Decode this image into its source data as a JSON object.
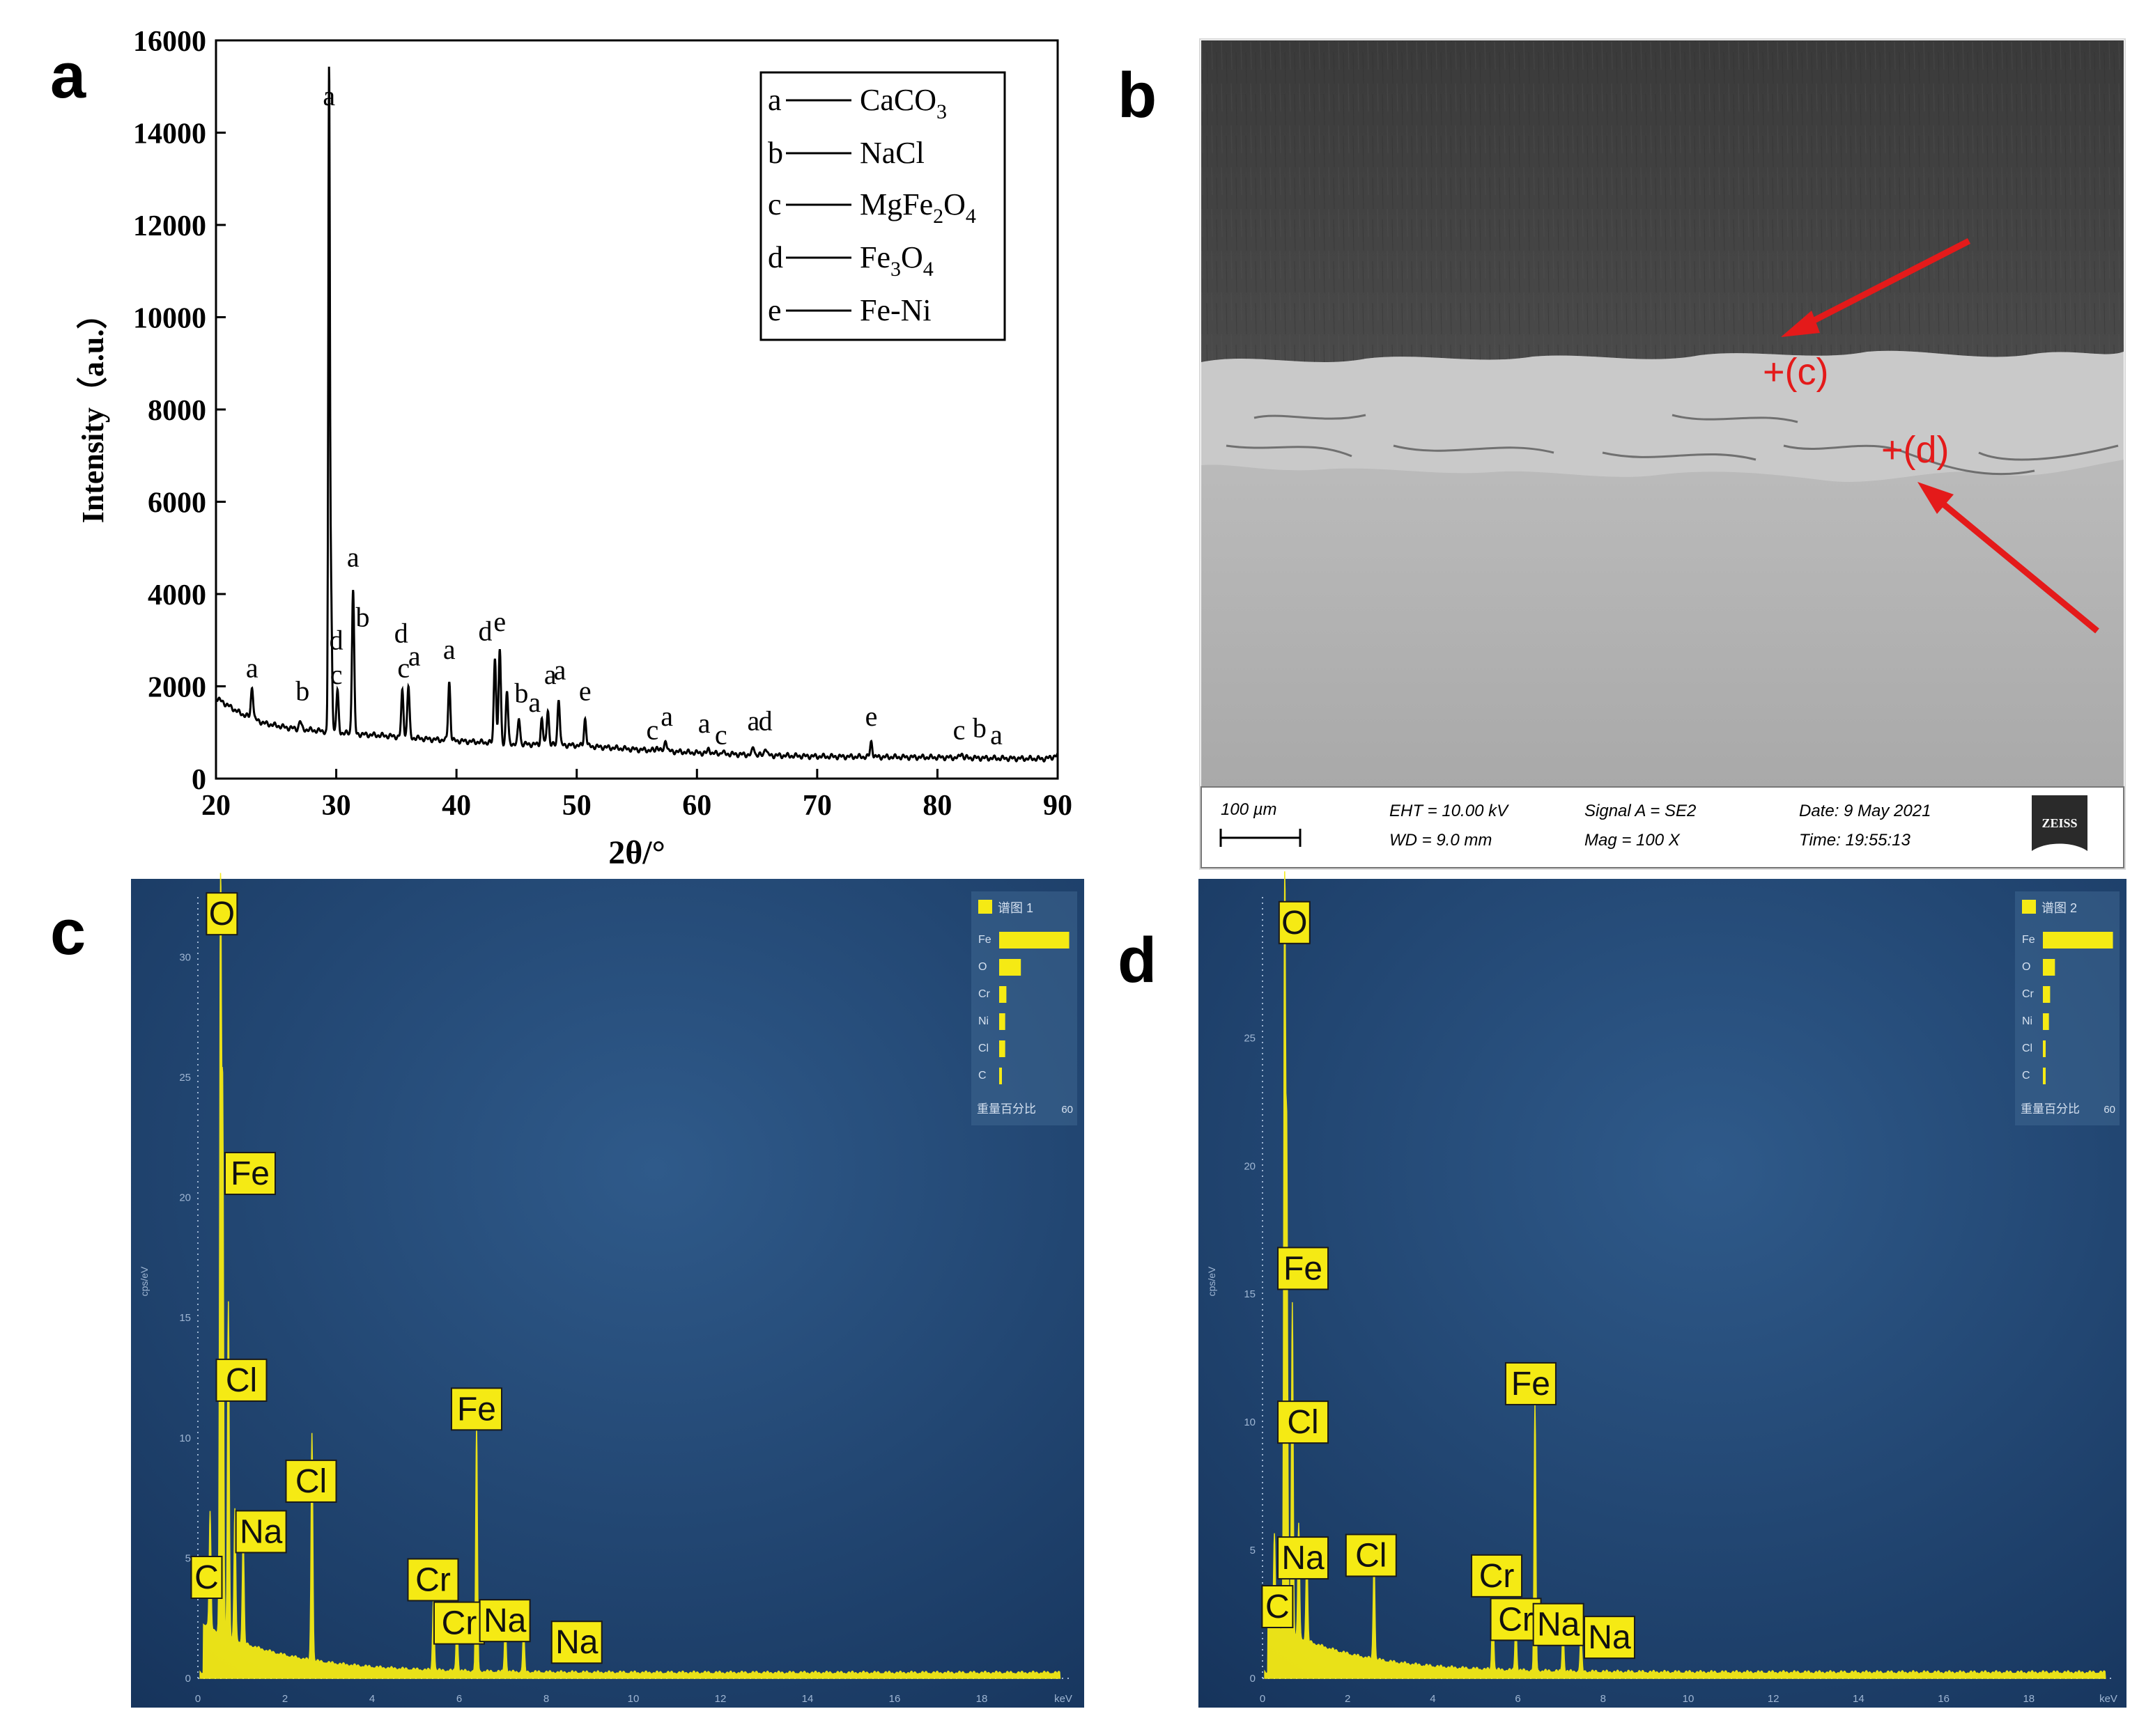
{
  "panel_letters": {
    "a": "a",
    "b": "b",
    "c": "c",
    "d": "d"
  },
  "panel_a": {
    "ylabel": "Intensity（a.u.）",
    "xlabel": "2θ/°",
    "yticks": [
      "0",
      "2000",
      "4000",
      "6000",
      "8000",
      "10000",
      "12000",
      "14000",
      "16000"
    ],
    "xticks": [
      "20",
      "30",
      "40",
      "50",
      "60",
      "70",
      "80",
      "90"
    ],
    "legend": [
      {
        "key": "a",
        "phase": "CaCO",
        "sub": "3",
        "rest": "",
        "rest_sub": ""
      },
      {
        "key": "b",
        "phase": "NaCl",
        "sub": "",
        "rest": "",
        "rest_sub": ""
      },
      {
        "key": "c",
        "phase": "MgFe",
        "sub": "2",
        "rest": "O",
        "rest_sub": "4"
      },
      {
        "key": "d",
        "phase": "Fe",
        "sub": "3",
        "rest": "O",
        "rest_sub": "4"
      },
      {
        "key": "e",
        "phase": "Fe-Ni",
        "sub": "",
        "rest": "",
        "rest_sub": ""
      }
    ],
    "peak_labels": [
      {
        "text": "a",
        "x": 29.4,
        "y": 14600
      },
      {
        "text": "a",
        "x": 23.0,
        "y": 2200
      },
      {
        "text": "b",
        "x": 27.2,
        "y": 1700
      },
      {
        "text": "d",
        "x": 30.0,
        "y": 2800
      },
      {
        "text": "c",
        "x": 30.0,
        "y": 2050
      },
      {
        "text": "a",
        "x": 31.4,
        "y": 4600
      },
      {
        "text": "b",
        "x": 32.2,
        "y": 3300
      },
      {
        "text": "d",
        "x": 35.4,
        "y": 2950
      },
      {
        "text": "c",
        "x": 35.6,
        "y": 2200
      },
      {
        "text": "a",
        "x": 36.5,
        "y": 2450
      },
      {
        "text": "a",
        "x": 39.4,
        "y": 2600
      },
      {
        "text": "d",
        "x": 42.4,
        "y": 3000
      },
      {
        "text": "e",
        "x": 43.6,
        "y": 3200
      },
      {
        "text": "b",
        "x": 45.4,
        "y": 1650
      },
      {
        "text": "a",
        "x": 46.5,
        "y": 1450
      },
      {
        "text": "a",
        "x": 47.8,
        "y": 2050
      },
      {
        "text": "a",
        "x": 48.6,
        "y": 2150
      },
      {
        "text": "e",
        "x": 50.7,
        "y": 1700
      },
      {
        "text": "c",
        "x": 56.3,
        "y": 850
      },
      {
        "text": "a",
        "x": 57.5,
        "y": 1150
      },
      {
        "text": "a",
        "x": 60.6,
        "y": 1000
      },
      {
        "text": "c",
        "x": 62.0,
        "y": 750
      },
      {
        "text": "a",
        "x": 64.7,
        "y": 1050
      },
      {
        "text": "d",
        "x": 65.7,
        "y": 1050
      },
      {
        "text": "e",
        "x": 74.5,
        "y": 1150
      },
      {
        "text": "c",
        "x": 81.8,
        "y": 850
      },
      {
        "text": "b",
        "x": 83.5,
        "y": 900
      },
      {
        "text": "a",
        "x": 84.9,
        "y": 750
      }
    ]
  },
  "chart_data": {
    "type": "line",
    "title": "",
    "xlabel": "2θ/°",
    "ylabel": "Intensity（a.u.）",
    "xlim": [
      20,
      90
    ],
    "ylim": [
      0,
      16000
    ],
    "grid": false,
    "legend_position": "top-right",
    "baseline": [
      [
        20,
        1750
      ],
      [
        22,
        1420
      ],
      [
        24,
        1200
      ],
      [
        26,
        1100
      ],
      [
        28,
        1050
      ],
      [
        30,
        1000
      ],
      [
        32,
        960
      ],
      [
        34,
        930
      ],
      [
        36,
        890
      ],
      [
        38,
        850
      ],
      [
        40,
        820
      ],
      [
        42,
        790
      ],
      [
        45,
        750
      ],
      [
        50,
        720
      ],
      [
        55,
        630
      ],
      [
        60,
        560
      ],
      [
        65,
        510
      ],
      [
        70,
        480
      ],
      [
        75,
        470
      ],
      [
        80,
        460
      ],
      [
        85,
        440
      ],
      [
        89,
        430
      ],
      [
        90,
        500
      ]
    ],
    "peaks": [
      {
        "x": 23.0,
        "y": 2000,
        "phase": "a"
      },
      {
        "x": 27.0,
        "y": 1250,
        "phase": "b"
      },
      {
        "x": 29.4,
        "y": 14550,
        "phase": "a"
      },
      {
        "x": 29.55,
        "y": 4300,
        "phase": "a"
      },
      {
        "x": 30.1,
        "y": 1900,
        "phase": "c"
      },
      {
        "x": 31.4,
        "y": 4100,
        "phase": "b"
      },
      {
        "x": 35.5,
        "y": 1900,
        "phase": "c"
      },
      {
        "x": 36.0,
        "y": 2000,
        "phase": "a"
      },
      {
        "x": 39.4,
        "y": 2100,
        "phase": "a"
      },
      {
        "x": 43.2,
        "y": 2650,
        "phase": "d"
      },
      {
        "x": 43.6,
        "y": 2800,
        "phase": "e"
      },
      {
        "x": 44.2,
        "y": 1900,
        "phase": "e"
      },
      {
        "x": 45.2,
        "y": 1300,
        "phase": "b"
      },
      {
        "x": 47.1,
        "y": 1300,
        "phase": "a"
      },
      {
        "x": 47.6,
        "y": 1500,
        "phase": "a"
      },
      {
        "x": 48.5,
        "y": 1750,
        "phase": "a"
      },
      {
        "x": 50.7,
        "y": 1300,
        "phase": "e"
      },
      {
        "x": 56.7,
        "y": 700,
        "phase": "c"
      },
      {
        "x": 57.4,
        "y": 850,
        "phase": "a"
      },
      {
        "x": 61.0,
        "y": 650,
        "phase": "a"
      },
      {
        "x": 62.1,
        "y": 580,
        "phase": "c"
      },
      {
        "x": 64.7,
        "y": 690,
        "phase": "a"
      },
      {
        "x": 65.7,
        "y": 680,
        "phase": "d"
      },
      {
        "x": 74.5,
        "y": 800,
        "phase": "e"
      },
      {
        "x": 82.0,
        "y": 560,
        "phase": "c"
      }
    ]
  },
  "panel_b": {
    "marker_c": "+(c)",
    "marker_d": "+(d)",
    "scale_label": "100 µm",
    "eht": "EHT = 10.00 kV",
    "wd": "WD =  9.0 mm",
    "signal": "Signal A = SE2",
    "mag": "Mag =    100 X",
    "date": "Date: 9 May 2021",
    "time": "Time: 19:55:13",
    "logo": "ZEISS"
  },
  "panel_c": {
    "yticks": [
      "0",
      "5",
      "10",
      "15",
      "20",
      "25",
      "30"
    ],
    "xticks": [
      "0",
      "2",
      "4",
      "6",
      "8",
      "10",
      "12",
      "14",
      "16",
      "18",
      "keV"
    ],
    "yunit": "cps/eV",
    "legend_title": "谱图 1",
    "legend_footer": "重量百分比",
    "legend_max": "60",
    "bars": [
      {
        "el": "Fe",
        "pct": 58
      },
      {
        "el": "O",
        "pct": 18
      },
      {
        "el": "Cr",
        "pct": 6
      },
      {
        "el": "Ni",
        "pct": 5
      },
      {
        "el": "Cl",
        "pct": 5
      },
      {
        "el": "C",
        "pct": 2
      }
    ],
    "spectrum": [
      [
        0.28,
        4.8
      ],
      [
        0.52,
        32
      ],
      [
        0.57,
        22
      ],
      [
        0.7,
        14
      ],
      [
        0.85,
        5.5
      ],
      [
        1.04,
        4.5
      ],
      [
        2.62,
        9.5
      ],
      [
        5.41,
        3.0
      ],
      [
        5.95,
        2.3
      ],
      [
        6.4,
        10.3
      ],
      [
        7.06,
        2.1
      ],
      [
        7.48,
        1.8
      ]
    ],
    "peak_labels": [
      {
        "text": "O",
        "keV": 0.55,
        "cps": 31.8
      },
      {
        "text": "Fe",
        "keV": 1.2,
        "cps": 21.0
      },
      {
        "text": "Cl",
        "keV": 1.0,
        "cps": 12.4
      },
      {
        "text": "Fe",
        "keV": 6.4,
        "cps": 11.2
      },
      {
        "text": "Cl",
        "keV": 2.6,
        "cps": 8.2
      },
      {
        "text": "Na",
        "keV": 1.45,
        "cps": 6.1
      },
      {
        "text": "C",
        "keV": 0.2,
        "cps": 4.2
      },
      {
        "text": "Cr",
        "keV": 5.4,
        "cps": 4.1
      },
      {
        "text": "Cr",
        "keV": 6.0,
        "cps": 2.3
      },
      {
        "text": "Na",
        "keV": 7.05,
        "cps": 2.4
      },
      {
        "text": "Na",
        "keV": 8.7,
        "cps": 1.5
      }
    ]
  },
  "panel_d": {
    "yticks": [
      "0",
      "5",
      "10",
      "15",
      "20",
      "25"
    ],
    "xticks": [
      "0",
      "2",
      "4",
      "6",
      "8",
      "10",
      "12",
      "14",
      "16",
      "18",
      "keV"
    ],
    "yunit": "cps/eV",
    "legend_title": "谱图 2",
    "legend_footer": "重量百分比",
    "legend_max": "60",
    "bars": [
      {
        "el": "Fe",
        "pct": 58
      },
      {
        "el": "O",
        "pct": 10
      },
      {
        "el": "Cr",
        "pct": 6
      },
      {
        "el": "Ni",
        "pct": 5
      },
      {
        "el": "Cl",
        "pct": 2
      },
      {
        "el": "C",
        "pct": 1
      }
    ],
    "spectrum": [
      [
        0.28,
        3.5
      ],
      [
        0.52,
        30
      ],
      [
        0.57,
        19
      ],
      [
        0.7,
        13
      ],
      [
        0.85,
        4.5
      ],
      [
        1.04,
        3.5
      ],
      [
        2.62,
        4.0
      ],
      [
        5.41,
        2.8
      ],
      [
        5.95,
        2.0
      ],
      [
        6.4,
        10.4
      ],
      [
        7.06,
        1.7
      ],
      [
        7.48,
        1.5
      ]
    ],
    "peak_labels": [
      {
        "text": "O",
        "keV": 0.75,
        "cps": 29.5
      },
      {
        "text": "Fe",
        "keV": 0.95,
        "cps": 16.0
      },
      {
        "text": "Fe",
        "keV": 6.3,
        "cps": 11.5
      },
      {
        "text": "Cl",
        "keV": 0.95,
        "cps": 10.0
      },
      {
        "text": "Cl",
        "keV": 2.55,
        "cps": 4.8
      },
      {
        "text": "Na",
        "keV": 0.95,
        "cps": 4.7
      },
      {
        "text": "C",
        "keV": 0.35,
        "cps": 2.8
      },
      {
        "text": "Cr",
        "keV": 5.5,
        "cps": 4.0
      },
      {
        "text": "Cr",
        "keV": 5.95,
        "cps": 2.3
      },
      {
        "text": "Na",
        "keV": 6.95,
        "cps": 2.1
      },
      {
        "text": "Na",
        "keV": 8.15,
        "cps": 1.6
      }
    ]
  }
}
